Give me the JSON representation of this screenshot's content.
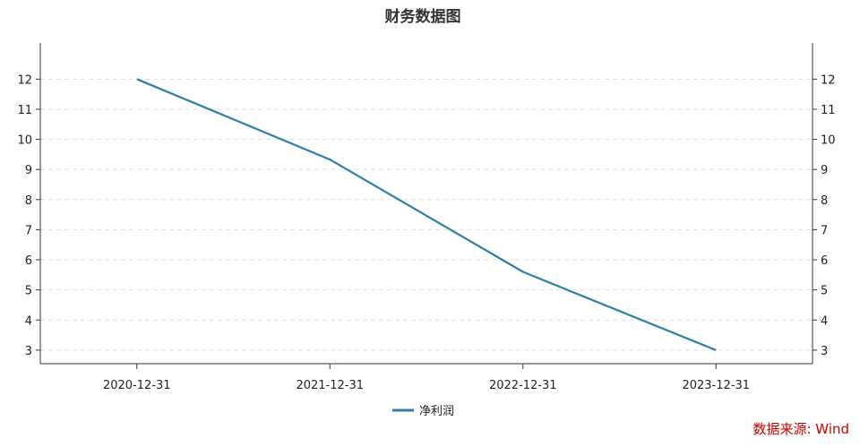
{
  "chart_data": {
    "type": "line",
    "title": "财务数据图",
    "categories": [
      "2020-12-31",
      "2021-12-31",
      "2022-12-31",
      "2023-12-31"
    ],
    "series": [
      {
        "name": "净利润",
        "values": [
          12.0,
          9.33,
          5.6,
          3.0
        ],
        "color": "#2e7fa3"
      }
    ],
    "yticks": [
      3,
      4,
      5,
      6,
      7,
      8,
      9,
      10,
      11,
      12
    ],
    "ylim": [
      2.55,
      13.2
    ],
    "grid": true,
    "legend": "bottom-center",
    "axis_color": "#333333",
    "grid_color": "#dddddd"
  },
  "source": "数据来源: Wind"
}
